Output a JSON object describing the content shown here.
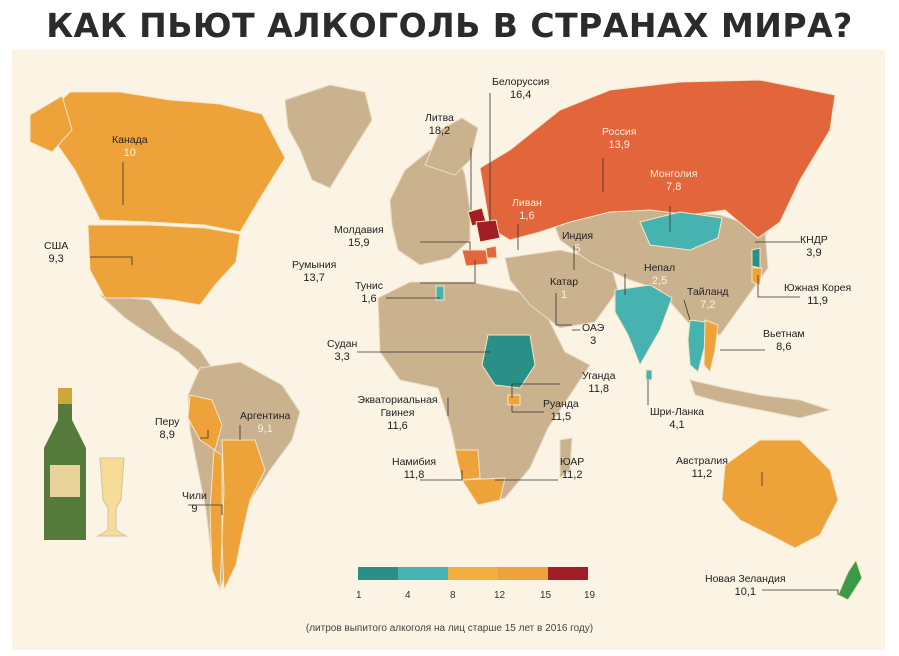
{
  "title": "КАК ПЬЮТ АЛКОГОЛЬ В СТРАНАХ МИРА?",
  "colors": {
    "background": "#fbf3e4",
    "land_nodata": "#cbb28f",
    "scale": [
      "#2a8f86",
      "#46b3b0",
      "#f0b040",
      "#eda23a",
      "#e2653b",
      "#a31d25"
    ]
  },
  "countries": [
    {
      "id": "canada",
      "name": "Канада",
      "value": "10"
    },
    {
      "id": "usa",
      "name": "США",
      "value": "9,3"
    },
    {
      "id": "lithuania",
      "name": "Литва",
      "value": "18,2"
    },
    {
      "id": "belarus",
      "name": "Белоруссия",
      "value": "16,4"
    },
    {
      "id": "russia",
      "name": "Россия",
      "value": "13,9"
    },
    {
      "id": "mongolia",
      "name": "Монголия",
      "value": "7,8"
    },
    {
      "id": "lebanon",
      "name": "Ливан",
      "value": "1,6"
    },
    {
      "id": "moldova",
      "name": "Молдавия",
      "value": "15,9"
    },
    {
      "id": "romania",
      "name": "Румыния",
      "value": "13,7"
    },
    {
      "id": "india",
      "name": "Индия",
      "value": "5"
    },
    {
      "id": "nkorea",
      "name": "КНДР",
      "value": "3,9"
    },
    {
      "id": "tunisia",
      "name": "Тунис",
      "value": "1,6"
    },
    {
      "id": "qatar",
      "name": "Катар",
      "value": "1"
    },
    {
      "id": "nepal",
      "name": "Непал",
      "value": "2,5"
    },
    {
      "id": "skorea",
      "name": "Южная Корея",
      "value": "11,9"
    },
    {
      "id": "thailand",
      "name": "Тайланд",
      "value": "7,2"
    },
    {
      "id": "uae",
      "name": "ОАЭ",
      "value": "3"
    },
    {
      "id": "sudan",
      "name": "Судан",
      "value": "3,3"
    },
    {
      "id": "vietnam",
      "name": "Вьетнам",
      "value": "8,6"
    },
    {
      "id": "uganda",
      "name": "Уганда",
      "value": "11,8"
    },
    {
      "id": "eqguinea",
      "name": "Экваториальная Гвинея",
      "value": "11,6"
    },
    {
      "id": "rwanda",
      "name": "Руанда",
      "value": "11,5"
    },
    {
      "id": "peru",
      "name": "Перу",
      "value": "8,9"
    },
    {
      "id": "argentina",
      "name": "Аргентина",
      "value": "9,1"
    },
    {
      "id": "srilanka",
      "name": "Шри-Ланка",
      "value": "4,1"
    },
    {
      "id": "namibia",
      "name": "Намибия",
      "value": "11,8"
    },
    {
      "id": "sar",
      "name": "ЮАР",
      "value": "11,2"
    },
    {
      "id": "australia",
      "name": "Австралия",
      "value": "11,2"
    },
    {
      "id": "chile",
      "name": "Чили",
      "value": "9"
    },
    {
      "id": "nz",
      "name": "Новая Зеландия",
      "value": "10,1"
    }
  ],
  "legend": {
    "ticks": [
      "1",
      "4",
      "8",
      "12",
      "15",
      "19"
    ]
  },
  "caption": "(литров выпитого алкоголя на лиц старше 15 лет в 2016 году)"
}
